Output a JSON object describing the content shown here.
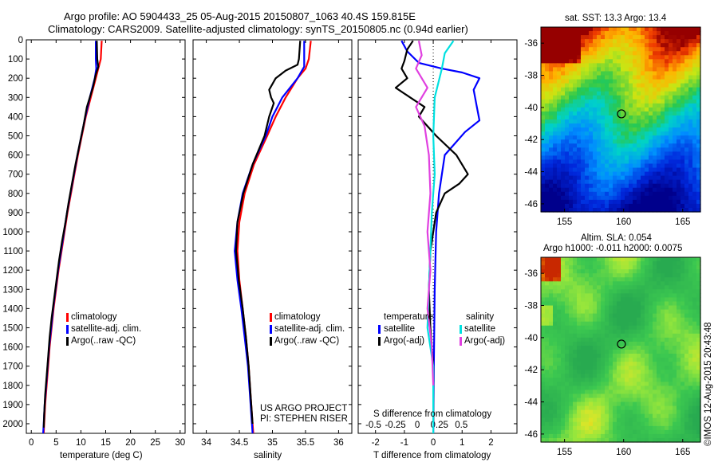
{
  "header": {
    "title_line1": "Argo profile: AO 5904433_25 05-Aug-2015 20150807_1063 40.4S 159.815E",
    "title_line2": "Climatology: CARS2009. Satellite-adjusted climatology: synTS_20150805.nc (0.94d earlier)"
  },
  "side_stamp": "©IMOS 12-Aug-2015 20:43:48",
  "colors": {
    "climatology": "#ff0000",
    "satellite": "#0000ff",
    "argo": "#000000",
    "satellite_salinity": "#00e0e0",
    "argo_salinity": "#e040e0"
  },
  "chart_data": [
    {
      "type": "line",
      "id": "temperature",
      "xlabel": "temperature (deg C)",
      "xlim": [
        -1,
        31
      ],
      "ylim": [
        2050,
        0
      ],
      "xticks": [
        0,
        5,
        10,
        15,
        20,
        25,
        30
      ],
      "yticks": [
        0,
        100,
        200,
        300,
        400,
        500,
        600,
        700,
        800,
        900,
        1000,
        1100,
        1200,
        1300,
        1400,
        1500,
        1600,
        1700,
        1800,
        1900,
        2000
      ],
      "legend": [
        "climatology",
        "satellite-adj. clim.",
        "Argo(..raw -QC)"
      ],
      "series": [
        {
          "name": "climatology",
          "color": "red",
          "points": [
            [
              14.2,
              5
            ],
            [
              14.0,
              100
            ],
            [
              13.5,
              150
            ],
            [
              13.0,
              200
            ],
            [
              12.0,
              300
            ],
            [
              11.0,
              400
            ],
            [
              10.2,
              500
            ],
            [
              9.4,
              600
            ],
            [
              8.7,
              700
            ],
            [
              8.0,
              800
            ],
            [
              7.3,
              900
            ],
            [
              6.7,
              1000
            ],
            [
              6.1,
              1100
            ],
            [
              5.5,
              1200
            ],
            [
              5.0,
              1300
            ],
            [
              4.5,
              1400
            ],
            [
              4.1,
              1500
            ],
            [
              3.7,
              1600
            ],
            [
              3.4,
              1700
            ],
            [
              3.1,
              1800
            ],
            [
              2.8,
              1900
            ],
            [
              2.6,
              2000
            ],
            [
              2.5,
              2050
            ]
          ]
        },
        {
          "name": "satellite-adj. clim.",
          "color": "blue",
          "points": [
            [
              13.0,
              5
            ],
            [
              13.0,
              100
            ],
            [
              13.1,
              150
            ],
            [
              12.8,
              200
            ],
            [
              11.8,
              300
            ],
            [
              10.9,
              400
            ],
            [
              10.1,
              500
            ],
            [
              9.3,
              600
            ],
            [
              8.6,
              700
            ],
            [
              7.9,
              800
            ],
            [
              7.2,
              900
            ],
            [
              6.6,
              1000
            ],
            [
              6.0,
              1100
            ],
            [
              5.4,
              1200
            ],
            [
              4.9,
              1300
            ],
            [
              4.4,
              1400
            ],
            [
              4.0,
              1500
            ],
            [
              3.6,
              1600
            ],
            [
              3.3,
              1700
            ],
            [
              3.0,
              1800
            ],
            [
              2.7,
              1900
            ],
            [
              2.5,
              2000
            ],
            [
              2.4,
              2050
            ]
          ]
        },
        {
          "name": "Argo(..raw -QC)",
          "color": "black",
          "points": [
            [
              13.2,
              5
            ],
            [
              13.3,
              100
            ],
            [
              13.5,
              140
            ],
            [
              13.0,
              180
            ],
            [
              12.4,
              250
            ],
            [
              11.2,
              350
            ],
            [
              10.5,
              450
            ],
            [
              9.7,
              550
            ],
            [
              8.9,
              650
            ],
            [
              8.2,
              750
            ],
            [
              7.5,
              850
            ],
            [
              6.9,
              950
            ],
            [
              6.2,
              1050
            ],
            [
              5.6,
              1150
            ],
            [
              5.1,
              1250
            ],
            [
              4.6,
              1350
            ],
            [
              4.1,
              1450
            ],
            [
              3.7,
              1550
            ],
            [
              3.4,
              1650
            ],
            [
              3.1,
              1750
            ],
            [
              2.8,
              1850
            ],
            [
              2.6,
              1950
            ],
            [
              2.5,
              2020
            ]
          ]
        }
      ]
    },
    {
      "type": "line",
      "id": "salinity",
      "xlabel": "salinity",
      "xlim": [
        33.8,
        36.2
      ],
      "ylim": [
        2050,
        0
      ],
      "xticks": [
        34,
        34.5,
        35,
        35.5,
        36
      ],
      "legend": [
        "climatology",
        "satellite-adj. clim.",
        "Argo(..raw -QC)"
      ],
      "annotation": [
        "US ARGO PROJECT",
        "PI: STEPHEN RISER"
      ],
      "series": [
        {
          "name": "climatology",
          "color": "red",
          "points": [
            [
              35.58,
              5
            ],
            [
              35.55,
              100
            ],
            [
              35.5,
              150
            ],
            [
              35.38,
              200
            ],
            [
              35.2,
              300
            ],
            [
              35.05,
              400
            ],
            [
              34.92,
              500
            ],
            [
              34.72,
              650
            ],
            [
              34.58,
              800
            ],
            [
              34.5,
              950
            ],
            [
              34.47,
              1100
            ],
            [
              34.5,
              1250
            ],
            [
              34.55,
              1400
            ],
            [
              34.6,
              1550
            ],
            [
              34.64,
              1700
            ],
            [
              34.67,
              1850
            ],
            [
              34.7,
              2000
            ],
            [
              34.71,
              2050
            ]
          ]
        },
        {
          "name": "satellite-adj. clim.",
          "color": "blue",
          "points": [
            [
              35.48,
              5
            ],
            [
              35.48,
              100
            ],
            [
              35.48,
              140
            ],
            [
              35.38,
              200
            ],
            [
              35.15,
              300
            ],
            [
              35.0,
              400
            ],
            [
              34.9,
              500
            ],
            [
              34.7,
              650
            ],
            [
              34.55,
              800
            ],
            [
              34.47,
              950
            ],
            [
              34.43,
              1100
            ],
            [
              34.47,
              1250
            ],
            [
              34.53,
              1400
            ],
            [
              34.58,
              1550
            ],
            [
              34.63,
              1700
            ],
            [
              34.66,
              1850
            ],
            [
              34.69,
              2000
            ],
            [
              34.7,
              2050
            ]
          ]
        },
        {
          "name": "Argo(..raw -QC)",
          "color": "black",
          "points": [
            [
              35.42,
              5
            ],
            [
              35.4,
              100
            ],
            [
              35.38,
              130
            ],
            [
              35.2,
              160
            ],
            [
              35.05,
              200
            ],
            [
              34.95,
              260
            ],
            [
              34.98,
              300
            ],
            [
              35.02,
              330
            ],
            [
              34.95,
              400
            ],
            [
              34.88,
              500
            ],
            [
              34.7,
              650
            ],
            [
              34.56,
              800
            ],
            [
              34.47,
              950
            ],
            [
              34.45,
              1100
            ],
            [
              34.49,
              1250
            ],
            [
              34.55,
              1400
            ],
            [
              34.6,
              1550
            ],
            [
              34.64,
              1700
            ],
            [
              34.67,
              1850
            ],
            [
              34.7,
              2000
            ]
          ]
        }
      ]
    },
    {
      "type": "line",
      "id": "difference",
      "xlabel": "T difference from climatology",
      "xlabel_top": "S difference from climatology",
      "xlim": [
        -2.6,
        2.9
      ],
      "ylim": [
        2050,
        0
      ],
      "xticks": [
        -2,
        -1,
        0,
        1,
        2
      ],
      "xticks_top": [
        -0.5,
        -0.25,
        0,
        0.25,
        0.5
      ],
      "legend_temperature_title": "temperature",
      "legend_salinity_title": "salinity",
      "legend_temperature": [
        "satellite",
        "Argo(-adj)"
      ],
      "legend_salinity": [
        "satellite",
        "Argo(-adj)"
      ],
      "series": [
        {
          "name": "T satellite",
          "color": "blue",
          "points": [
            [
              -1.1,
              5
            ],
            [
              -0.9,
              60
            ],
            [
              -0.5,
              120
            ],
            [
              0.3,
              150
            ],
            [
              1.0,
              170
            ],
            [
              1.6,
              200
            ],
            [
              1.4,
              260
            ],
            [
              1.5,
              340
            ],
            [
              1.6,
              420
            ],
            [
              1.1,
              480
            ],
            [
              0.4,
              600
            ],
            [
              0.2,
              800
            ],
            [
              0.1,
              1000
            ],
            [
              0.05,
              1300
            ],
            [
              0.02,
              1700
            ],
            [
              0.0,
              2050
            ]
          ]
        },
        {
          "name": "T Argo(-adj)",
          "color": "black",
          "points": [
            [
              -0.7,
              5
            ],
            [
              -0.9,
              50
            ],
            [
              -1.0,
              110
            ],
            [
              -1.1,
              150
            ],
            [
              -0.9,
              200
            ],
            [
              -1.3,
              250
            ],
            [
              -0.8,
              300
            ],
            [
              -0.3,
              350
            ],
            [
              -0.5,
              400
            ],
            [
              0.1,
              500
            ],
            [
              0.8,
              600
            ],
            [
              1.2,
              700
            ],
            [
              0.9,
              750
            ],
            [
              0.4,
              800
            ],
            [
              0.1,
              900
            ],
            [
              -0.1,
              1100
            ],
            [
              -0.15,
              1300
            ],
            [
              -0.1,
              1500
            ],
            [
              0.0,
              1700
            ],
            [
              0.0,
              2000
            ]
          ]
        },
        {
          "name": "S satellite",
          "color": "cyan",
          "points": [
            [
              0.7,
              5
            ],
            [
              0.4,
              70
            ],
            [
              0.3,
              150
            ],
            [
              0.05,
              300
            ],
            [
              0.0,
              500
            ],
            [
              0.05,
              700
            ],
            [
              -0.05,
              900
            ],
            [
              -0.1,
              1100
            ],
            [
              -0.15,
              1300
            ],
            [
              -0.2,
              1500
            ],
            [
              0.0,
              1700
            ],
            [
              0.0,
              2050
            ]
          ]
        },
        {
          "name": "S Argo(-adj)",
          "color": "magenta",
          "points": [
            [
              -0.5,
              5
            ],
            [
              -0.4,
              80
            ],
            [
              -0.6,
              150
            ],
            [
              -0.2,
              250
            ],
            [
              -0.6,
              350
            ],
            [
              -0.3,
              450
            ],
            [
              -0.15,
              600
            ],
            [
              -0.1,
              800
            ],
            [
              -0.2,
              1000
            ],
            [
              -0.1,
              1200
            ],
            [
              -0.2,
              1400
            ],
            [
              -0.05,
              1600
            ],
            [
              0.0,
              1800
            ]
          ]
        }
      ]
    },
    {
      "type": "heatmap",
      "id": "sst_map",
      "title": "sat. SST: 13.3  Argo: 13.4",
      "xlim": [
        153,
        166.5
      ],
      "ylim": [
        -46.5,
        -35
      ],
      "xticks": [
        155,
        160,
        165
      ],
      "yticks": [
        -36,
        -38,
        -40,
        -42,
        -44,
        -46
      ],
      "marker": {
        "lon": 159.815,
        "lat": -40.4
      }
    },
    {
      "type": "heatmap",
      "id": "sla_map",
      "title_line1": "Altim. SLA: 0.054",
      "title_line2": "Argo h1000: -0.011 h2000: 0.0075",
      "xlim": [
        153,
        166.5
      ],
      "ylim": [
        -46.5,
        -35
      ],
      "xticks": [
        155,
        160,
        165
      ],
      "yticks": [
        -36,
        -38,
        -40,
        -42,
        -44,
        -46
      ],
      "marker": {
        "lon": 159.815,
        "lat": -40.4
      }
    }
  ]
}
